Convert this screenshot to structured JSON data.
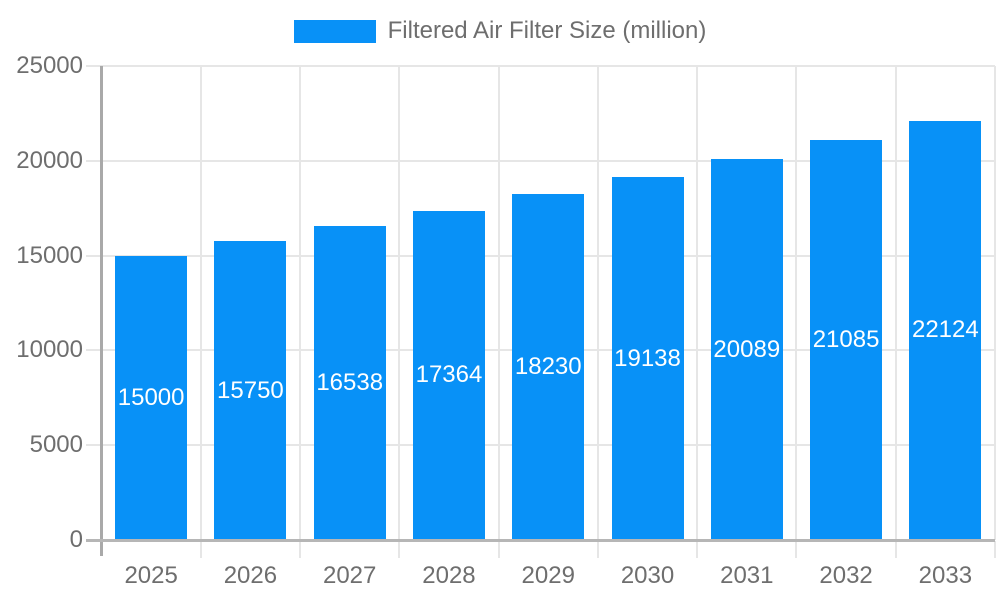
{
  "chart_data": {
    "type": "bar",
    "legend": {
      "label": "Filtered Air Filter Size (million)",
      "position": "top"
    },
    "categories": [
      "2025",
      "2026",
      "2027",
      "2028",
      "2029",
      "2030",
      "2031",
      "2032",
      "2033"
    ],
    "series": [
      {
        "name": "Filtered Air Filter Size (million)",
        "values": [
          15000,
          15750,
          16538,
          17364,
          18230,
          19138,
          20089,
          21085,
          22124
        ]
      }
    ],
    "value_labels": [
      "15000",
      "15750",
      "16538",
      "17364",
      "18230",
      "19138",
      "20089",
      "21085",
      "22124"
    ],
    "value_labels_position": "center-of-bar",
    "xlabel": "",
    "ylabel": "",
    "ylim": [
      0,
      25000
    ],
    "ytick_step": 5000,
    "ytick_labels": [
      "0",
      "5000",
      "10000",
      "15000",
      "20000",
      "25000"
    ],
    "grid": true,
    "colors": {
      "bar": "#0891f7",
      "grid": "#e6e6e6",
      "axis": "#a9a9a9",
      "baseline": "#b6b6b6",
      "text": "#6e6e6e",
      "value_label": "#ffffff",
      "background": "#ffffff"
    }
  }
}
